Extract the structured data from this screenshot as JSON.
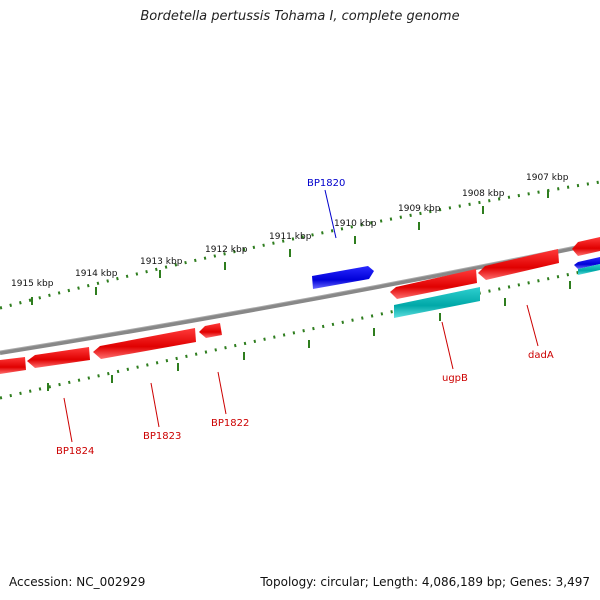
{
  "title": "Bordetella pertussis Tohama I, complete genome",
  "footer": {
    "accession": "Accession: NC_002929",
    "summary": "Topology: circular; Length: 4,086,189 bp; Genes: 3,497"
  },
  "colors": {
    "forward_gene": "#0000ee",
    "reverse_gene": "#ee0000",
    "rna_gene": "#00bbbb",
    "backbone": "#888888",
    "ticks": "#2e7d1e",
    "label_forward": "#0000cc",
    "label_reverse": "#cc0000"
  },
  "kbp_ticks": [
    "1915 kbp",
    "1914 kbp",
    "1913 kbp",
    "1912 kbp",
    "1911 kbp",
    "1910 kbp",
    "1909 kbp",
    "1908 kbp",
    "1907 kbp"
  ],
  "gene_labels": [
    {
      "name": "BP1820",
      "strand": "forward"
    },
    {
      "name": "ugpB",
      "strand": "reverse"
    },
    {
      "name": "dadA",
      "strand": "reverse"
    },
    {
      "name": "BP1822",
      "strand": "reverse"
    },
    {
      "name": "BP1823",
      "strand": "reverse"
    },
    {
      "name": "BP1824",
      "strand": "reverse"
    }
  ]
}
